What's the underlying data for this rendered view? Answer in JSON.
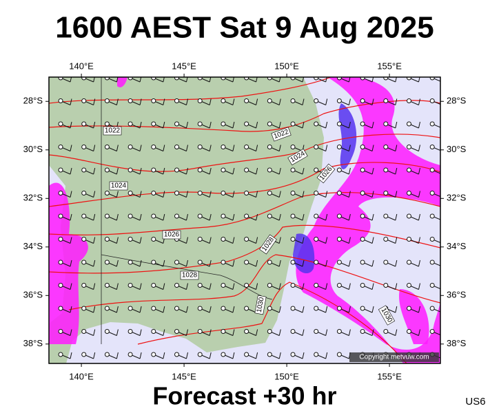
{
  "title": "1600 AEST Sat 9 Aug 2025",
  "subtitle": "Forecast +30 hr",
  "model": "US6",
  "copyright": "Copyright metvuw.com",
  "map": {
    "lonlim": [
      138.42,
      157.48
    ],
    "latlim": [
      -27.0,
      -38.8
    ],
    "lon_ticks": [
      {
        "value": 140,
        "label": "140°E"
      },
      {
        "value": 145,
        "label": "145°E"
      },
      {
        "value": 150,
        "label": "150°E"
      },
      {
        "value": 155,
        "label": "155°E"
      }
    ],
    "lat_ticks": [
      {
        "value": -28,
        "label": "28°S"
      },
      {
        "value": -30,
        "label": "30°S"
      },
      {
        "value": -32,
        "label": "32°S"
      },
      {
        "value": -34,
        "label": "34°S"
      },
      {
        "value": -36,
        "label": "36°S"
      },
      {
        "value": -38,
        "label": "38°S"
      }
    ],
    "isobar_labels": [
      "1022",
      "1022",
      "1024",
      "1026",
      "1024",
      "1026",
      "1028",
      "1028",
      "1030",
      "1030"
    ]
  }
}
